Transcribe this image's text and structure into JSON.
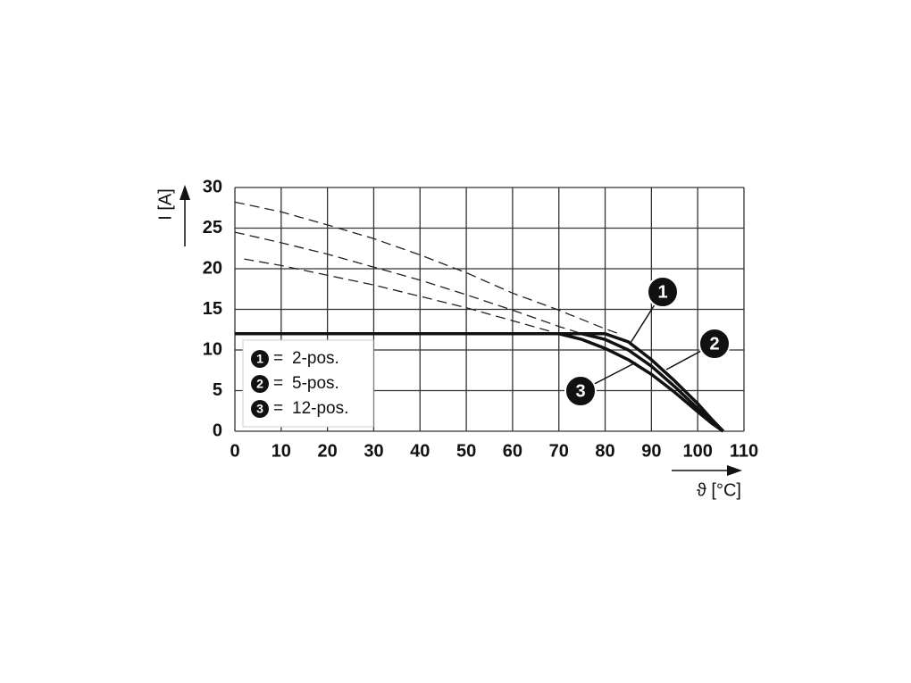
{
  "chart_data": {
    "type": "line",
    "x_label": "ϑ [°C]",
    "y_label": "I [A]",
    "xlim": [
      0,
      110
    ],
    "ylim": [
      0,
      30
    ],
    "xticks": [
      0,
      10,
      20,
      30,
      40,
      50,
      60,
      70,
      80,
      90,
      100,
      110
    ],
    "yticks": [
      0,
      5,
      10,
      15,
      20,
      25,
      30
    ],
    "grid": true,
    "legend_separator": "=",
    "series": [
      {
        "marker": "1",
        "name": "2-pos.",
        "color": "#111111",
        "x": [
          0,
          80,
          85,
          90,
          95,
          100,
          103,
          105.5
        ],
        "values": [
          12,
          12,
          11,
          8.8,
          6.2,
          3.4,
          1.5,
          0
        ]
      },
      {
        "marker": "2",
        "name": "5-pos.",
        "color": "#111111",
        "x": [
          0,
          75,
          80,
          85,
          90,
          95,
          100,
          103,
          105.5
        ],
        "values": [
          12,
          12,
          11.3,
          10,
          8,
          5.5,
          2.8,
          1.2,
          0
        ]
      },
      {
        "marker": "3",
        "name": "12-pos.",
        "color": "#111111",
        "x": [
          0,
          70,
          75,
          80,
          85,
          90,
          95,
          100,
          103,
          105.5
        ],
        "values": [
          12,
          12,
          11.3,
          10.2,
          8.8,
          7,
          4.8,
          2.4,
          1,
          0
        ]
      }
    ],
    "extrapolated": [
      {
        "x": [
          0,
          10,
          20,
          30,
          40,
          50,
          60,
          70,
          80,
          83
        ],
        "values": [
          28.2,
          27,
          25.4,
          23.7,
          21.7,
          19.5,
          17,
          14.9,
          12.6,
          12
        ]
      },
      {
        "x": [
          0,
          10,
          20,
          30,
          40,
          50,
          60,
          70,
          75
        ],
        "values": [
          24.5,
          23.2,
          21.8,
          20.2,
          18.6,
          16.8,
          14.9,
          12.9,
          12
        ]
      },
      {
        "x": [
          2,
          10,
          20,
          30,
          40,
          50,
          60,
          70
        ],
        "values": [
          21.2,
          20.4,
          19.2,
          18,
          16.6,
          15.2,
          13.6,
          12
        ]
      }
    ]
  }
}
